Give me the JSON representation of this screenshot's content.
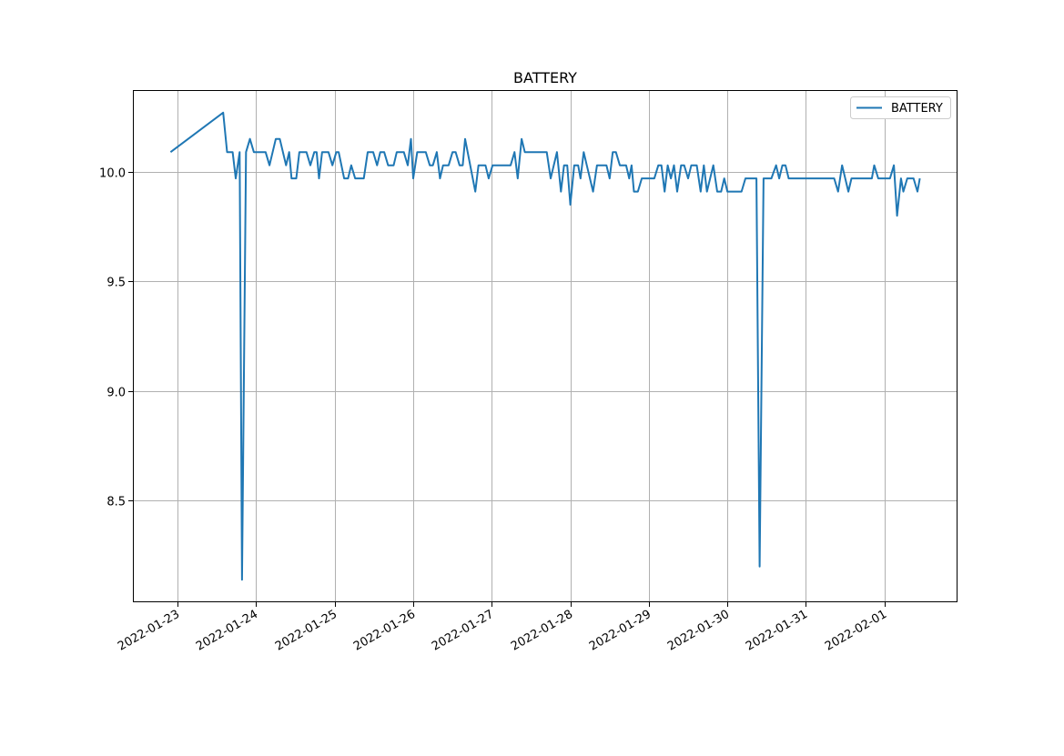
{
  "chart_data": {
    "type": "line",
    "title": "BATTERY",
    "xlabel": "",
    "ylabel": "",
    "x_units": "days since 2022-01-23 00:00",
    "xlim": [
      -0.57,
      9.93
    ],
    "ylim": [
      8.037,
      10.373
    ],
    "grid": true,
    "legend_position": "top-right",
    "x_ticks": [
      {
        "value": 0,
        "label": "2022-01-23"
      },
      {
        "value": 1,
        "label": "2022-01-24"
      },
      {
        "value": 2,
        "label": "2022-01-25"
      },
      {
        "value": 3,
        "label": "2022-01-26"
      },
      {
        "value": 4,
        "label": "2022-01-27"
      },
      {
        "value": 5,
        "label": "2022-01-28"
      },
      {
        "value": 6,
        "label": "2022-01-29"
      },
      {
        "value": 7,
        "label": "2022-01-30"
      },
      {
        "value": 8,
        "label": "2022-01-31"
      },
      {
        "value": 9,
        "label": "2022-02-01"
      }
    ],
    "y_ticks": [
      {
        "value": 8.5,
        "label": "8.5"
      },
      {
        "value": 9.0,
        "label": "9.0"
      },
      {
        "value": 9.5,
        "label": "9.5"
      },
      {
        "value": 10.0,
        "label": "10.0"
      }
    ],
    "series": [
      {
        "name": "BATTERY",
        "color": "#1f77b4",
        "x": [
          -0.09,
          0.58,
          0.63,
          0.7,
          0.74,
          0.79,
          0.82,
          0.87,
          0.92,
          0.97,
          1.12,
          1.17,
          1.25,
          1.3,
          1.38,
          1.42,
          1.45,
          1.51,
          1.55,
          1.64,
          1.69,
          1.74,
          1.77,
          1.8,
          1.84,
          1.92,
          1.97,
          2.02,
          2.05,
          2.12,
          2.17,
          2.21,
          2.26,
          2.37,
          2.42,
          2.49,
          2.54,
          2.58,
          2.63,
          2.68,
          2.75,
          2.79,
          2.88,
          2.93,
          2.97,
          3.0,
          3.05,
          3.16,
          3.21,
          3.25,
          3.3,
          3.34,
          3.38,
          3.45,
          3.5,
          3.54,
          3.59,
          3.63,
          3.66,
          3.79,
          3.83,
          3.92,
          3.96,
          4.01,
          4.24,
          4.29,
          4.33,
          4.38,
          4.42,
          4.7,
          4.75,
          4.83,
          4.88,
          4.92,
          4.96,
          5.0,
          5.05,
          5.1,
          5.13,
          5.17,
          5.21,
          5.29,
          5.34,
          5.46,
          5.5,
          5.54,
          5.58,
          5.63,
          5.71,
          5.75,
          5.78,
          5.81,
          5.86,
          5.91,
          6.07,
          6.12,
          6.16,
          6.2,
          6.24,
          6.28,
          6.32,
          6.36,
          6.41,
          6.45,
          6.5,
          6.54,
          6.61,
          6.66,
          6.7,
          6.74,
          6.82,
          6.87,
          6.92,
          6.96,
          7.0,
          7.18,
          7.23,
          7.37,
          7.41,
          7.46,
          7.56,
          7.62,
          7.66,
          7.7,
          7.74,
          7.78,
          8.36,
          8.41,
          8.46,
          8.54,
          8.58,
          8.84,
          8.87,
          8.92,
          9.07,
          9.12,
          9.16,
          9.21,
          9.24,
          9.29,
          9.37,
          9.42,
          9.45
        ],
        "y": [
          10.09,
          10.27,
          10.09,
          10.09,
          9.97,
          10.09,
          8.14,
          10.09,
          10.15,
          10.09,
          10.09,
          10.03,
          10.15,
          10.15,
          10.03,
          10.09,
          9.97,
          9.97,
          10.09,
          10.09,
          10.03,
          10.09,
          10.09,
          9.97,
          10.09,
          10.09,
          10.03,
          10.09,
          10.09,
          9.97,
          9.97,
          10.03,
          9.97,
          9.97,
          10.09,
          10.09,
          10.03,
          10.09,
          10.09,
          10.03,
          10.03,
          10.09,
          10.09,
          10.03,
          10.15,
          9.97,
          10.09,
          10.09,
          10.03,
          10.03,
          10.09,
          9.97,
          10.03,
          10.03,
          10.09,
          10.09,
          10.03,
          10.03,
          10.15,
          9.91,
          10.03,
          10.03,
          9.97,
          10.03,
          10.03,
          10.09,
          9.97,
          10.15,
          10.09,
          10.09,
          9.97,
          10.09,
          9.91,
          10.03,
          10.03,
          9.85,
          10.03,
          10.03,
          9.97,
          10.09,
          10.03,
          9.91,
          10.03,
          10.03,
          9.97,
          10.09,
          10.09,
          10.03,
          10.03,
          9.97,
          10.03,
          9.91,
          9.91,
          9.97,
          9.97,
          10.03,
          10.03,
          9.91,
          10.03,
          9.97,
          10.03,
          9.91,
          10.03,
          10.03,
          9.97,
          10.03,
          10.03,
          9.91,
          10.03,
          9.91,
          10.03,
          9.91,
          9.91,
          9.97,
          9.91,
          9.91,
          9.97,
          9.97,
          8.2,
          9.97,
          9.97,
          10.03,
          9.97,
          10.03,
          10.03,
          9.97,
          9.97,
          9.91,
          10.03,
          9.91,
          9.97,
          9.97,
          10.03,
          9.97,
          9.97,
          10.03,
          9.8,
          9.97,
          9.91,
          9.97,
          9.97,
          9.91,
          9.97
        ]
      }
    ]
  }
}
